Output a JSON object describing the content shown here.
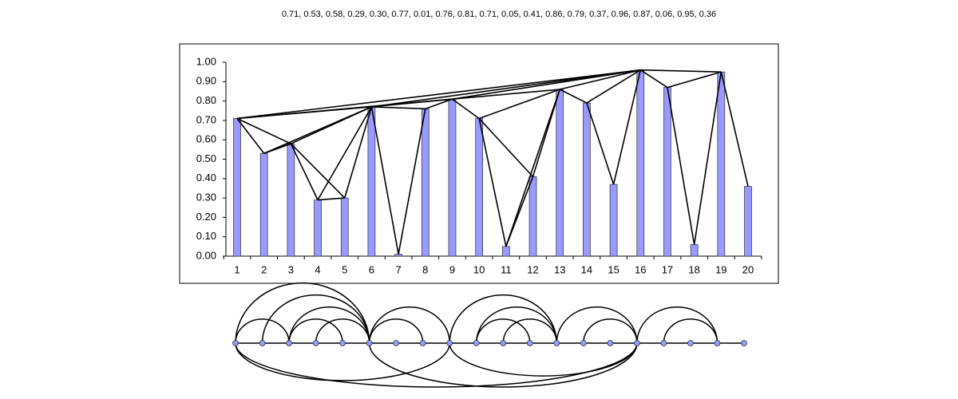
{
  "chart_data": {
    "type": "bar",
    "title": "0.71, 0.53, 0.58, 0.29, 0.30, 0.77, 0.01, 0.76, 0.81, 0.71, 0.05, 0.41, 0.86, 0.79, 0.37, 0.96, 0.87, 0.06, 0.95, 0.36",
    "categories": [
      "1",
      "2",
      "3",
      "4",
      "5",
      "6",
      "7",
      "8",
      "9",
      "10",
      "11",
      "12",
      "13",
      "14",
      "15",
      "16",
      "17",
      "18",
      "19",
      "20"
    ],
    "values": [
      0.71,
      0.53,
      0.58,
      0.29,
      0.3,
      0.77,
      0.01,
      0.76,
      0.81,
      0.71,
      0.05,
      0.41,
      0.86,
      0.79,
      0.37,
      0.96,
      0.87,
      0.06,
      0.95,
      0.36
    ],
    "color": "#9999ff",
    "ylim": [
      0,
      1
    ],
    "yticks": [
      {
        "value": 0,
        "label": "0.00"
      },
      {
        "value": 0.1,
        "label": "0.10"
      },
      {
        "value": 0.2,
        "label": "0.20"
      },
      {
        "value": 0.3,
        "label": "0.30"
      },
      {
        "value": 0.4,
        "label": "0.40"
      },
      {
        "value": 0.5,
        "label": "0.50"
      },
      {
        "value": 0.6,
        "label": "0.60"
      },
      {
        "value": 0.7,
        "label": "0.70"
      },
      {
        "value": 0.8,
        "label": "0.80"
      },
      {
        "value": 0.9,
        "label": "0.90"
      },
      {
        "value": 1,
        "label": "1.00"
      }
    ]
  }
}
